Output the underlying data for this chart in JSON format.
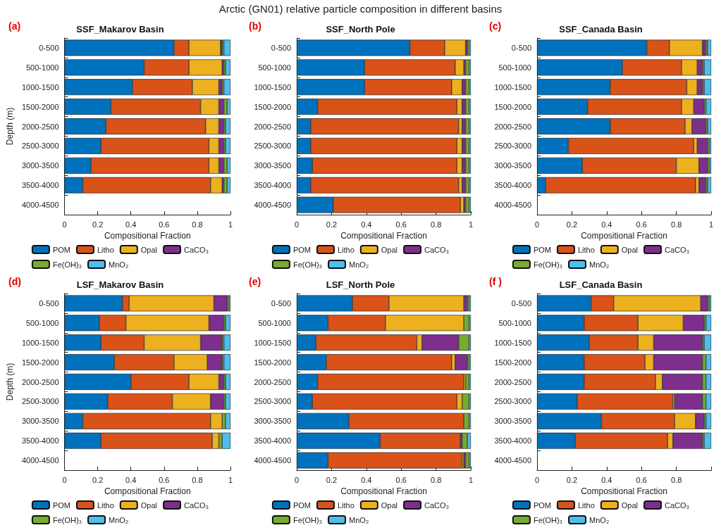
{
  "chart_data": [
    {
      "type": "bar",
      "orientation": "horizontal",
      "stacked": true,
      "title": "SSF_Makarov Basin",
      "annotations": [
        "Arctic (GN01) relative particle composition in different basins",
        "(a)"
      ],
      "xlabel": "Compositional Fraction",
      "ylabel": "Depth (m)",
      "legend": "bottom",
      "xlim": [
        0,
        1
      ],
      "xticks": [
        0,
        0.2,
        0.4,
        0.6,
        0.8,
        1
      ],
      "categories": [
        "0-500",
        "500-1000",
        "1000-1500",
        "1500-2000",
        "2000-2500",
        "2500-3000",
        "3000-3500",
        "3500-4000",
        "4000-4500"
      ],
      "series": [
        {
          "name": "POM",
          "color": "#0072bd",
          "values": [
            0.66,
            0.48,
            0.41,
            0.28,
            0.25,
            0.22,
            0.16,
            0.11,
            null
          ]
        },
        {
          "name": "Litho",
          "color": "#d95319",
          "values": [
            0.09,
            0.27,
            0.36,
            0.54,
            0.6,
            0.65,
            0.71,
            0.77,
            null
          ]
        },
        {
          "name": "Opal",
          "color": "#edb120",
          "values": [
            0.19,
            0.2,
            0.16,
            0.11,
            0.08,
            0.06,
            0.06,
            0.07,
            null
          ]
        },
        {
          "name": "CaCO₃",
          "color": "#7e2f8e",
          "values": [
            0.01,
            0.01,
            0.02,
            0.03,
            0.03,
            0.03,
            0.03,
            0.01,
            null
          ]
        },
        {
          "name": "Fe(OH)₃",
          "color": "#77ac30",
          "values": [
            0.01,
            0.01,
            0.01,
            0.02,
            0.01,
            0.01,
            0.02,
            0.02,
            null
          ]
        },
        {
          "name": "MnO₂",
          "color": "#4dbeee",
          "values": [
            0.04,
            0.03,
            0.04,
            0.02,
            0.03,
            0.03,
            0.02,
            0.02,
            null
          ]
        }
      ]
    },
    {
      "type": "bar",
      "orientation": "horizontal",
      "stacked": true,
      "title": "SSF_North Pole",
      "annotations": [
        "(b)"
      ],
      "xlabel": "Compositional Fraction",
      "legend": "bottom",
      "xlim": [
        0,
        1
      ],
      "xticks": [
        0,
        0.2,
        0.4,
        0.6,
        0.8,
        1
      ],
      "categories": [
        "0-500",
        "500-1000",
        "1000-1500",
        "1500-2000",
        "2000-2500",
        "2500-3000",
        "3000-3500",
        "3500-4000",
        "4000-4500"
      ],
      "series": [
        {
          "name": "POM",
          "color": "#0072bd",
          "values": [
            0.65,
            0.39,
            0.39,
            0.12,
            0.08,
            0.08,
            0.09,
            0.08,
            0.21
          ]
        },
        {
          "name": "Litho",
          "color": "#d95319",
          "values": [
            0.2,
            0.52,
            0.5,
            0.8,
            0.85,
            0.84,
            0.83,
            0.85,
            0.73
          ]
        },
        {
          "name": "Opal",
          "color": "#edb120",
          "values": [
            0.12,
            0.05,
            0.06,
            0.03,
            0.02,
            0.03,
            0.03,
            0.02,
            0.02
          ]
        },
        {
          "name": "CaCO₃",
          "color": "#7e2f8e",
          "values": [
            0.01,
            0.01,
            0.02,
            0.02,
            0.02,
            0.02,
            0.02,
            0.02,
            0.01
          ]
        },
        {
          "name": "Fe(OH)₃",
          "color": "#77ac30",
          "values": [
            0.01,
            0.02,
            0.02,
            0.02,
            0.02,
            0.02,
            0.02,
            0.02,
            0.02
          ]
        },
        {
          "name": "MnO₂",
          "color": "#4dbeee",
          "values": [
            0.01,
            0.01,
            0.01,
            0.01,
            0.01,
            0.01,
            0.01,
            0.01,
            0.01
          ]
        }
      ]
    },
    {
      "type": "bar",
      "orientation": "horizontal",
      "stacked": true,
      "title": "SSF_Canada Basin",
      "annotations": [
        "(c)"
      ],
      "xlabel": "Compositional Fraction",
      "legend": "bottom",
      "xlim": [
        0,
        1
      ],
      "xticks": [
        0,
        0.2,
        0.4,
        0.6,
        0.8,
        1
      ],
      "categories": [
        "0-500",
        "500-1000",
        "1000-1500",
        "1500-2000",
        "2000-2500",
        "2500-3000",
        "3000-3500",
        "3500-4000",
        "4000-4500"
      ],
      "series": [
        {
          "name": "POM",
          "color": "#0072bd",
          "values": [
            0.63,
            0.49,
            0.42,
            0.29,
            0.42,
            0.18,
            0.26,
            0.05,
            null
          ]
        },
        {
          "name": "Litho",
          "color": "#d95319",
          "values": [
            0.13,
            0.34,
            0.44,
            0.54,
            0.43,
            0.72,
            0.54,
            0.86,
            null
          ]
        },
        {
          "name": "Opal",
          "color": "#edb120",
          "values": [
            0.19,
            0.09,
            0.06,
            0.07,
            0.04,
            0.02,
            0.13,
            0.02,
            null
          ]
        },
        {
          "name": "CaCO₃",
          "color": "#7e2f8e",
          "values": [
            0.02,
            0.03,
            0.03,
            0.06,
            0.08,
            0.06,
            0.05,
            0.04,
            null
          ]
        },
        {
          "name": "Fe(OH)₃",
          "color": "#77ac30",
          "values": [
            0.01,
            0.01,
            0.01,
            0.01,
            0.01,
            0.01,
            0.01,
            0.01,
            null
          ]
        },
        {
          "name": "MnO₂",
          "color": "#4dbeee",
          "values": [
            0.02,
            0.04,
            0.04,
            0.03,
            0.02,
            0.01,
            0.01,
            0.02,
            null
          ]
        }
      ]
    },
    {
      "type": "bar",
      "orientation": "horizontal",
      "stacked": true,
      "title": "LSF_Makarov Basin",
      "annotations": [
        "(d)"
      ],
      "xlabel": "Compositional Fraction",
      "ylabel": "Depth (m)",
      "legend": "bottom",
      "xlim": [
        0,
        1
      ],
      "xticks": [
        0,
        0.2,
        0.4,
        0.6,
        0.8,
        1
      ],
      "categories": [
        "0-500",
        "500-1000",
        "1000-1500",
        "1500-2000",
        "2000-2500",
        "2500-3000",
        "3000-3500",
        "3500-4000",
        "4000-4500"
      ],
      "series": [
        {
          "name": "POM",
          "color": "#0072bd",
          "values": [
            0.35,
            0.21,
            0.22,
            0.3,
            0.4,
            0.26,
            0.11,
            0.22,
            null
          ]
        },
        {
          "name": "Litho",
          "color": "#d95319",
          "values": [
            0.04,
            0.16,
            0.26,
            0.36,
            0.35,
            0.39,
            0.77,
            0.67,
            null
          ]
        },
        {
          "name": "Opal",
          "color": "#edb120",
          "values": [
            0.51,
            0.5,
            0.34,
            0.2,
            0.18,
            0.23,
            0.07,
            0.04,
            null
          ]
        },
        {
          "name": "CaCO₃",
          "color": "#7e2f8e",
          "values": [
            0.08,
            0.09,
            0.13,
            0.09,
            0.03,
            0.08,
            0,
            0,
            null
          ]
        },
        {
          "name": "Fe(OH)₃",
          "color": "#77ac30",
          "values": [
            0.01,
            0.01,
            0.01,
            0.01,
            0.01,
            0.01,
            0.02,
            0.02,
            null
          ]
        },
        {
          "name": "MnO₂",
          "color": "#4dbeee",
          "values": [
            0.01,
            0.03,
            0.04,
            0.04,
            0.03,
            0.03,
            0.03,
            0.05,
            null
          ]
        }
      ]
    },
    {
      "type": "bar",
      "orientation": "horizontal",
      "stacked": true,
      "title": "LSF_North Pole",
      "annotations": [
        "(e)"
      ],
      "xlabel": "Compositional Fraction",
      "legend": "bottom",
      "xlim": [
        0,
        1
      ],
      "xticks": [
        0,
        0.2,
        0.4,
        0.6,
        0.8,
        1
      ],
      "categories": [
        "0-500",
        "500-1000",
        "1000-1500",
        "1500-2000",
        "2000-2500",
        "2500-3000",
        "3000-3500",
        "3500-4000",
        "4000-4500"
      ],
      "series": [
        {
          "name": "POM",
          "color": "#0072bd",
          "values": [
            0.32,
            0.18,
            0.11,
            0.17,
            0.12,
            0.09,
            0.3,
            0.48,
            0.18
          ]
        },
        {
          "name": "Litho",
          "color": "#d95319",
          "values": [
            0.21,
            0.33,
            0.58,
            0.72,
            0.84,
            0.83,
            0.66,
            0.46,
            0.77
          ]
        },
        {
          "name": "Opal",
          "color": "#edb120",
          "values": [
            0.43,
            0.45,
            0.03,
            0.02,
            0.01,
            0.03,
            0,
            0,
            0.01
          ]
        },
        {
          "name": "CaCO₃",
          "color": "#7e2f8e",
          "values": [
            0.02,
            0,
            0.21,
            0.07,
            0,
            0,
            0,
            0.01,
            0.01
          ]
        },
        {
          "name": "Fe(OH)₃",
          "color": "#77ac30",
          "values": [
            0.01,
            0.03,
            0.06,
            0.01,
            0.02,
            0.04,
            0.03,
            0.03,
            0.02
          ]
        },
        {
          "name": "MnO₂",
          "color": "#4dbeee",
          "values": [
            0.01,
            0.01,
            0.01,
            0.01,
            0.01,
            0.01,
            0.01,
            0.02,
            0.01
          ]
        }
      ]
    },
    {
      "type": "bar",
      "orientation": "horizontal",
      "stacked": true,
      "title": "LSF_Canada Basin",
      "annotations": [
        "(f )"
      ],
      "xlabel": "Compositional Fraction",
      "legend": "bottom",
      "xlim": [
        0,
        1
      ],
      "xticks": [
        0,
        0.2,
        0.4,
        0.6,
        0.8,
        {
          "value": 1,
          "label": null
        }
      ],
      "categories": [
        "0-500",
        "500-1000",
        "1000-1500",
        "1500-2000",
        "2000-2500",
        "2500-3000",
        "3000-3500",
        "3500-4000",
        "4000-4500"
      ],
      "series": [
        {
          "name": "POM",
          "color": "#0072bd",
          "values": [
            0.31,
            0.27,
            0.3,
            0.27,
            0.27,
            0.23,
            0.37,
            0.22,
            null
          ]
        },
        {
          "name": "Litho",
          "color": "#d95319",
          "values": [
            0.13,
            0.31,
            0.28,
            0.35,
            0.41,
            0.55,
            0.42,
            0.53,
            null
          ]
        },
        {
          "name": "Opal",
          "color": "#edb120",
          "values": [
            0.5,
            0.26,
            0.09,
            0.05,
            0.04,
            0.01,
            0.12,
            0.03,
            null
          ]
        },
        {
          "name": "CaCO₃",
          "color": "#7e2f8e",
          "values": [
            0.04,
            0.12,
            0.28,
            0.28,
            0.23,
            0.16,
            0.05,
            0.17,
            null
          ]
        },
        {
          "name": "Fe(OH)₃",
          "color": "#77ac30",
          "values": [
            0.01,
            0.01,
            0.01,
            0.02,
            0.02,
            0.02,
            0.01,
            0.01,
            null
          ]
        },
        {
          "name": "MnO₂",
          "color": "#4dbeee",
          "values": [
            0.01,
            0.03,
            0.04,
            0.03,
            0.03,
            0.03,
            0.03,
            0.04,
            null
          ]
        }
      ]
    }
  ]
}
